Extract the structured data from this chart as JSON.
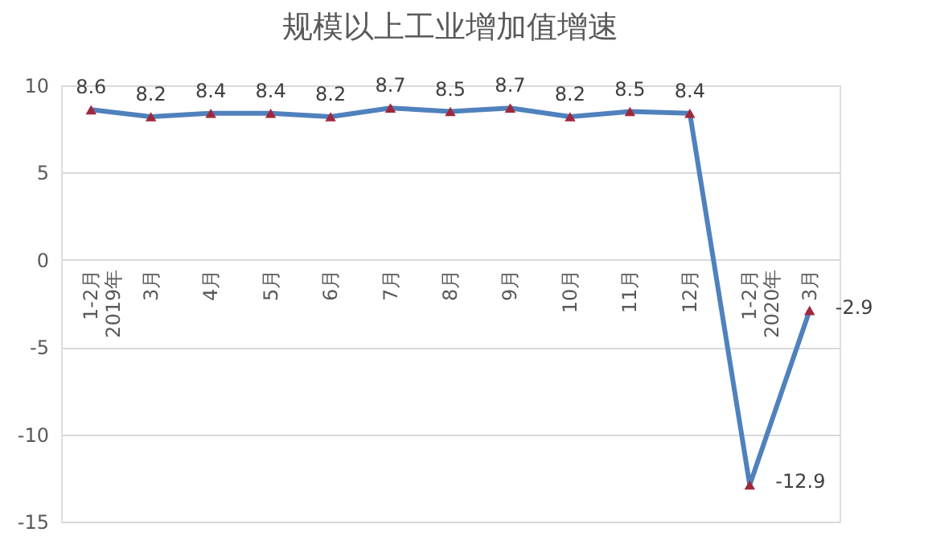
{
  "chart_data": {
    "type": "line",
    "title": "规模以上工业增加值增速",
    "categories": [
      "1-2月\n2019年",
      "3月",
      "4月",
      "5月",
      "6月",
      "7月",
      "8月",
      "9月",
      "10月",
      "11月",
      "12月",
      "1-2月\n2020年",
      "3月"
    ],
    "series": [
      {
        "color": "#4f81bd",
        "values": [
          8.6,
          8.2,
          8.4,
          8.4,
          8.2,
          8.7,
          8.5,
          8.7,
          8.2,
          8.5,
          8.4,
          -12.9,
          -2.9
        ]
      }
    ],
    "ylim": [
      -15,
      10
    ],
    "yticks": [
      -15,
      -10,
      -5,
      0,
      5,
      10
    ],
    "grid": "y",
    "marker": "triangle",
    "line_style": "solid",
    "data_labels": true,
    "legend": false
  }
}
